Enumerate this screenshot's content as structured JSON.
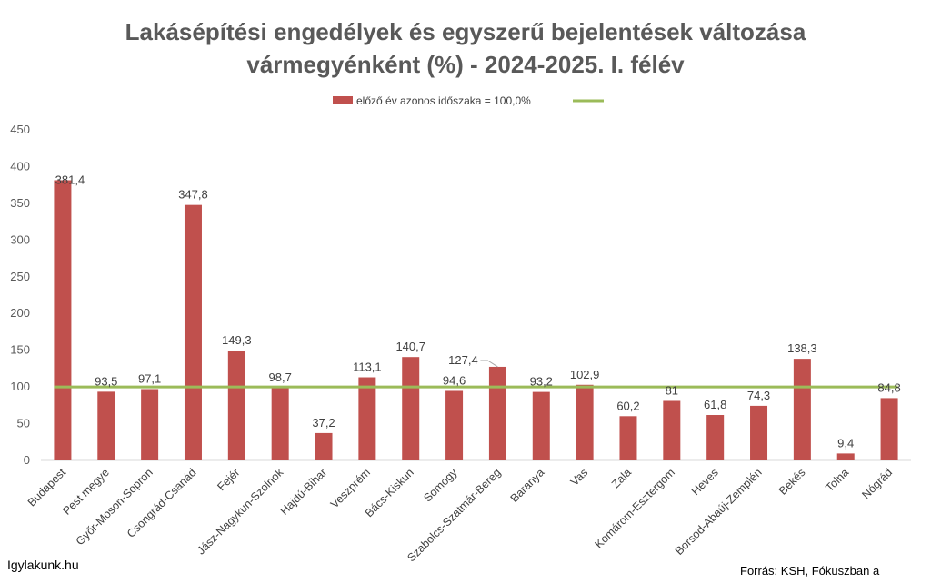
{
  "chart_data": {
    "type": "bar",
    "title_lines": [
      "Lakásépítési engedélyek és egyszerű bejelentések változása",
      "vármegyénként (%) - 2024-2025. I. félév"
    ],
    "categories": [
      "Budapest",
      "Pest megye",
      "Győr-Moson-Sopron",
      "Csongrád-Csanád",
      "Fejér",
      "Jász-Nagykun-Szolnok",
      "Hajdú-Bihar",
      "Veszprém",
      "Bács-Kiskun",
      "Somogy",
      "Szabolcs-Szatmár-Bereg",
      "Baranya",
      "Vas",
      "Zala",
      "Komárom-Esztergom",
      "Heves",
      "Borsod-Abaúj-Zemplén",
      "Békés",
      "Tolna",
      "Nógrád"
    ],
    "values": [
      381.4,
      93.5,
      97.1,
      347.8,
      149.3,
      98.7,
      37.2,
      113.1,
      140.7,
      94.6,
      127.4,
      93.2,
      102.9,
      60.2,
      81,
      61.8,
      74.3,
      138.3,
      9.4,
      84.8
    ],
    "data_labels": [
      "381,4",
      "93,5",
      "97,1",
      "347,8",
      "149,3",
      "98,7",
      "37,2",
      "113,1",
      "140,7",
      "94,6",
      "127,4",
      "93,2",
      "102,9",
      "60,2",
      "81",
      "61,8",
      "74,3",
      "138,3",
      "9,4",
      "84,8"
    ],
    "reference_line": {
      "value": 100,
      "label": "előző év azonos időszaka = 100,0%",
      "color": "#9BBB59"
    },
    "bar_color": "#C0504D",
    "ylim": [
      0,
      450
    ],
    "yticks": [
      0,
      50,
      100,
      150,
      200,
      250,
      300,
      350,
      400,
      450
    ],
    "grid": false,
    "legend_position": "top-center"
  },
  "footer": {
    "site": "Igylakunk.hu",
    "source": "Forrás: KSH, Fókuszban a"
  }
}
